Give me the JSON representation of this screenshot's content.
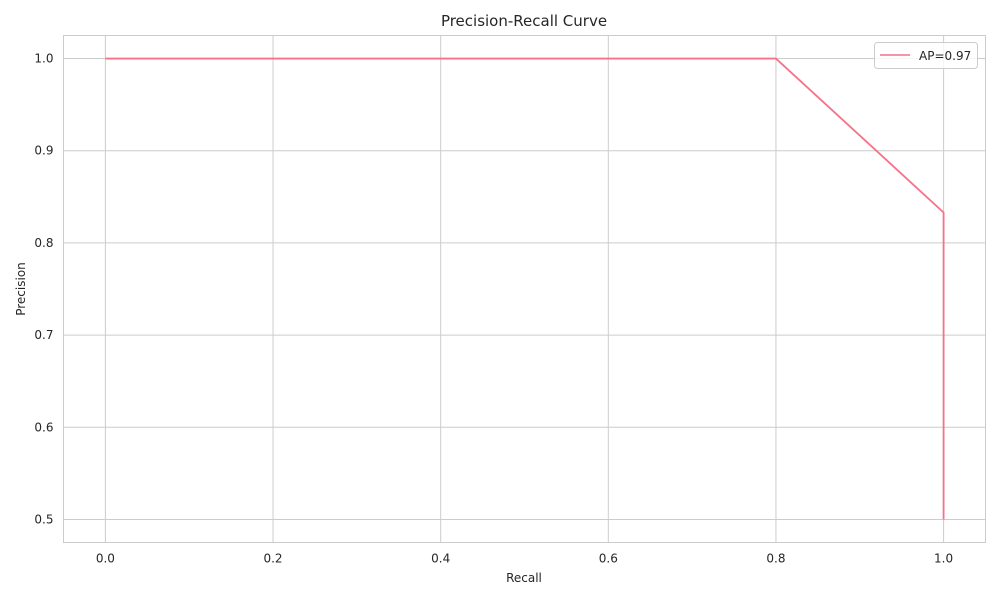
{
  "chart_data": {
    "type": "line",
    "title": "Precision-Recall Curve",
    "xlabel": "Recall",
    "ylabel": "Precision",
    "xlim": [
      -0.05,
      1.05
    ],
    "ylim": [
      0.475,
      1.025
    ],
    "xticks": [
      0.0,
      0.2,
      0.4,
      0.6,
      0.8,
      1.0
    ],
    "xtick_labels": [
      "0.0",
      "0.2",
      "0.4",
      "0.6",
      "0.8",
      "1.0"
    ],
    "yticks": [
      0.5,
      0.6,
      0.7,
      0.8,
      0.9,
      1.0
    ],
    "ytick_labels": [
      "0.5",
      "0.6",
      "0.7",
      "0.8",
      "0.9",
      "1.0"
    ],
    "grid": true,
    "legend_position": "top-right",
    "series": [
      {
        "name": "AP=0.97",
        "color": "#f77189",
        "points": [
          {
            "x": 0.0,
            "y": 1.0
          },
          {
            "x": 0.8,
            "y": 1.0
          },
          {
            "x": 1.0,
            "y": 0.833
          },
          {
            "x": 1.0,
            "y": 0.5
          }
        ]
      }
    ]
  }
}
